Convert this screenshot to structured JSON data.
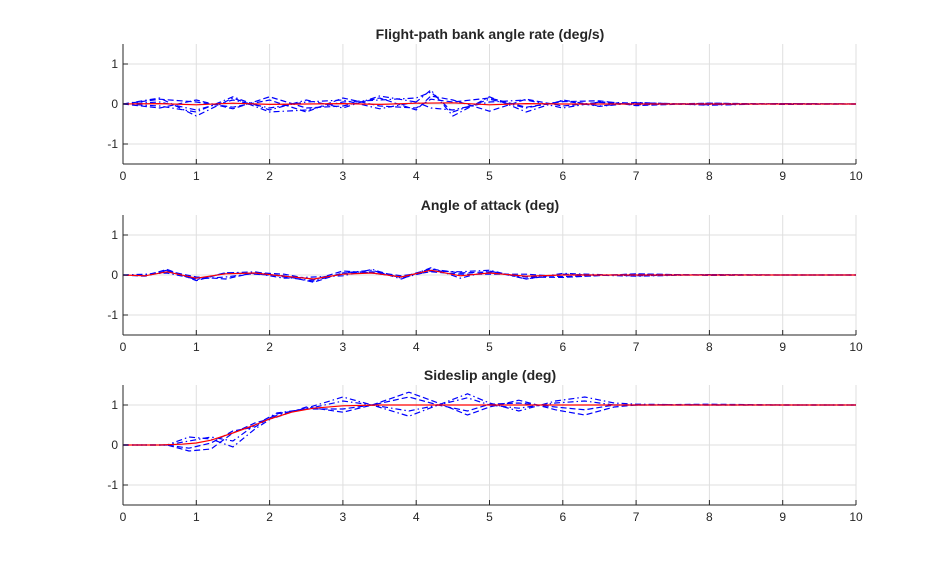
{
  "figure": {
    "background": "#ffffff",
    "reference_color": "#ff0000",
    "sample_color": "#0000ff"
  },
  "chart_data": [
    {
      "type": "line",
      "title": "Flight-path bank angle rate (deg/s)",
      "xlim": [
        0,
        10
      ],
      "ylim": [
        -1.5,
        1.5
      ],
      "xticks": [
        0,
        1,
        2,
        3,
        4,
        5,
        6,
        7,
        8,
        9,
        10
      ],
      "yticks": [
        -1,
        0,
        1
      ],
      "grid": true,
      "reference": {
        "style": "solid",
        "color": "#ff0000",
        "x": [
          0,
          0.5,
          1,
          1.5,
          2,
          2.5,
          3,
          3.5,
          4,
          4.5,
          5,
          5.5,
          6,
          6.5,
          7,
          8,
          9,
          10
        ],
        "y": [
          0,
          0.01,
          -0.02,
          0.02,
          -0.01,
          0.0,
          0.01,
          -0.01,
          0.02,
          0.03,
          -0.02,
          0.01,
          0.0,
          0.0,
          0.0,
          0.0,
          0.0,
          0.0
        ]
      },
      "series": [
        {
          "style": "dash-dot",
          "color": "#0000ff",
          "x": [
            0,
            0.5,
            1,
            1.5,
            2,
            2.5,
            3,
            3.5,
            4,
            4.2,
            4.5,
            5,
            5.5,
            6,
            6.5,
            7,
            8,
            9,
            10
          ],
          "y": [
            0,
            0.15,
            -0.3,
            0.15,
            -0.2,
            -0.15,
            0.05,
            0.1,
            0.15,
            0.3,
            -0.2,
            0.12,
            -0.1,
            0.08,
            -0.06,
            0.03,
            -0.01,
            0.01,
            0
          ]
        },
        {
          "style": "dashed",
          "color": "#0000ff",
          "x": [
            0,
            0.5,
            1,
            1.5,
            2,
            2.5,
            3,
            3.5,
            4,
            4.2,
            4.5,
            5,
            5.5,
            6,
            6.5,
            7,
            8,
            9,
            10
          ],
          "y": [
            0,
            -0.1,
            0.1,
            -0.12,
            0.18,
            -0.1,
            -0.05,
            0.15,
            -0.15,
            0.2,
            0.1,
            -0.18,
            0.12,
            -0.05,
            0.04,
            -0.02,
            0.02,
            -0.01,
            0
          ]
        },
        {
          "style": "dash-dot",
          "color": "#0000ff",
          "x": [
            0,
            0.5,
            1,
            1.5,
            2,
            2.5,
            3,
            3.5,
            4,
            4.2,
            4.5,
            5,
            5.5,
            6,
            6.5,
            7,
            8,
            9,
            10
          ],
          "y": [
            0,
            0.05,
            -0.15,
            0.1,
            -0.1,
            0.05,
            0.1,
            -0.12,
            0.05,
            0.35,
            -0.3,
            0.18,
            -0.2,
            0.1,
            -0.05,
            0.04,
            -0.03,
            0.01,
            0
          ]
        },
        {
          "style": "dashed",
          "color": "#0000ff",
          "x": [
            0,
            0.5,
            1,
            1.5,
            2,
            2.5,
            3,
            3.5,
            4,
            4.2,
            4.5,
            5,
            5.5,
            6,
            6.5,
            7,
            8,
            9,
            10
          ],
          "y": [
            0,
            0.12,
            0.05,
            -0.08,
            0.1,
            -0.2,
            0.15,
            -0.05,
            -0.1,
            0.12,
            0.05,
            0.15,
            -0.08,
            0.06,
            0.08,
            -0.04,
            0.02,
            0.0,
            0
          ]
        },
        {
          "style": "dash-dot",
          "color": "#0000ff",
          "x": [
            0,
            0.5,
            1,
            1.5,
            2,
            2.5,
            3,
            3.5,
            4,
            4.2,
            4.5,
            5,
            5.5,
            6,
            6.5,
            7,
            8,
            9,
            10
          ],
          "y": [
            0,
            -0.05,
            -0.2,
            0.18,
            -0.15,
            0.1,
            -0.1,
            0.2,
            0.05,
            -0.1,
            -0.15,
            0.05,
            0.1,
            -0.1,
            0.05,
            0.02,
            -0.02,
            0.01,
            0
          ]
        }
      ]
    },
    {
      "type": "line",
      "title": "Angle of attack (deg)",
      "xlim": [
        0,
        10
      ],
      "ylim": [
        -1.5,
        1.5
      ],
      "xticks": [
        0,
        1,
        2,
        3,
        4,
        5,
        6,
        7,
        8,
        9,
        10
      ],
      "yticks": [
        -1,
        0,
        1
      ],
      "grid": true,
      "reference": {
        "style": "solid",
        "color": "#ff0000",
        "x": [
          0,
          0.3,
          0.6,
          1,
          1.4,
          1.8,
          2.2,
          2.6,
          3,
          3.4,
          3.8,
          4.2,
          4.6,
          5,
          5.5,
          6,
          7,
          8,
          9,
          10
        ],
        "y": [
          0,
          -0.02,
          0.08,
          -0.08,
          0.03,
          0.05,
          -0.03,
          -0.1,
          0.02,
          0.05,
          -0.05,
          0.12,
          -0.02,
          0.05,
          -0.03,
          0.0,
          0.0,
          0.0,
          0.0,
          0.0
        ]
      },
      "series": [
        {
          "style": "dash-dot",
          "color": "#0000ff",
          "x": [
            0,
            0.3,
            0.6,
            1,
            1.4,
            1.8,
            2.2,
            2.6,
            3,
            3.4,
            3.8,
            4.2,
            4.6,
            5,
            5.5,
            6,
            7,
            8,
            9,
            10
          ],
          "y": [
            0,
            0.0,
            0.12,
            -0.12,
            0.05,
            0.08,
            -0.05,
            -0.15,
            0.05,
            0.12,
            -0.1,
            0.18,
            -0.08,
            0.1,
            -0.1,
            0.04,
            -0.02,
            0.01,
            0.0,
            0
          ]
        },
        {
          "style": "dashed",
          "color": "#0000ff",
          "x": [
            0,
            0.3,
            0.6,
            1,
            1.4,
            1.8,
            2.2,
            2.6,
            3,
            3.4,
            3.8,
            4.2,
            4.6,
            5,
            5.5,
            6,
            7,
            8,
            9,
            10
          ],
          "y": [
            0,
            -0.03,
            0.1,
            -0.05,
            -0.1,
            0.06,
            0.02,
            -0.12,
            0.1,
            0.05,
            -0.05,
            0.15,
            0.05,
            0.08,
            -0.05,
            -0.06,
            0.03,
            -0.01,
            0.0,
            0
          ]
        },
        {
          "style": "dash-dot",
          "color": "#0000ff",
          "x": [
            0,
            0.3,
            0.6,
            1,
            1.4,
            1.8,
            2.2,
            2.6,
            3,
            3.4,
            3.8,
            4.2,
            4.6,
            5,
            5.5,
            6,
            7,
            8,
            9,
            10
          ],
          "y": [
            0,
            0.02,
            0.05,
            -0.1,
            -0.05,
            0.04,
            -0.08,
            -0.05,
            -0.02,
            0.14,
            -0.08,
            0.1,
            0.08,
            0.12,
            -0.1,
            0.02,
            -0.03,
            0.01,
            0.0,
            0
          ]
        },
        {
          "style": "dashed",
          "color": "#0000ff",
          "x": [
            0,
            0.3,
            0.6,
            1,
            1.4,
            1.8,
            2.2,
            2.6,
            3,
            3.4,
            3.8,
            4.2,
            4.6,
            5,
            5.5,
            6,
            7,
            8,
            9,
            10
          ],
          "y": [
            0,
            -0.02,
            0.14,
            -0.14,
            0.06,
            0.02,
            -0.02,
            -0.18,
            0.05,
            0.08,
            -0.02,
            0.08,
            0.02,
            0.02,
            0.02,
            -0.04,
            0.02,
            0.0,
            0.0,
            0
          ]
        }
      ]
    },
    {
      "type": "line",
      "title": "Sideslip angle (deg)",
      "xlim": [
        0,
        10
      ],
      "ylim": [
        -1.5,
        1.5
      ],
      "xticks": [
        0,
        1,
        2,
        3,
        4,
        5,
        6,
        7,
        8,
        9,
        10
      ],
      "yticks": [
        -1,
        0,
        1
      ],
      "grid": true,
      "reference": {
        "style": "solid",
        "color": "#ff0000",
        "x": [
          0,
          0.5,
          0.8,
          1.0,
          1.2,
          1.5,
          1.8,
          2.0,
          2.3,
          2.6,
          3,
          3.5,
          4,
          5,
          6,
          7,
          8,
          9,
          10
        ],
        "y": [
          0,
          0,
          0.02,
          0.05,
          0.12,
          0.3,
          0.5,
          0.65,
          0.82,
          0.92,
          0.98,
          1.0,
          1.0,
          1.0,
          1.0,
          1.0,
          1.0,
          1.0,
          1.0
        ]
      },
      "series": [
        {
          "style": "dash-dot",
          "color": "#0000ff",
          "x": [
            0,
            0.6,
            0.9,
            1.2,
            1.5,
            1.8,
            2.1,
            2.5,
            3,
            3.4,
            3.9,
            4.3,
            4.7,
            5,
            5.4,
            5.9,
            6.3,
            6.7,
            7,
            8,
            9,
            10
          ],
          "y": [
            0,
            0,
            0.2,
            0.15,
            -0.05,
            0.4,
            0.75,
            0.92,
            1.2,
            1.0,
            0.72,
            1.0,
            1.28,
            1.05,
            0.85,
            1.1,
            1.2,
            1.05,
            1.02,
            1.0,
            1.0,
            1.0
          ]
        },
        {
          "style": "dashed",
          "color": "#0000ff",
          "x": [
            0,
            0.6,
            0.9,
            1.2,
            1.5,
            1.8,
            2.1,
            2.5,
            3,
            3.4,
            3.9,
            4.3,
            4.7,
            5,
            5.4,
            5.9,
            6.3,
            6.7,
            7,
            8,
            9,
            10
          ],
          "y": [
            0,
            0,
            -0.15,
            -0.1,
            0.3,
            0.55,
            0.7,
            0.95,
            0.82,
            1.0,
            1.32,
            1.05,
            0.75,
            0.95,
            1.12,
            0.88,
            0.75,
            0.95,
            1.0,
            1.02,
            1.0,
            1.0
          ]
        },
        {
          "style": "dash-dot",
          "color": "#0000ff",
          "x": [
            0,
            0.6,
            0.9,
            1.2,
            1.5,
            1.8,
            2.1,
            2.5,
            3,
            3.4,
            3.9,
            4.3,
            4.7,
            5,
            5.4,
            5.9,
            6.3,
            6.7,
            7,
            8,
            9,
            10
          ],
          "y": [
            0,
            0,
            0.1,
            0.2,
            0.1,
            0.5,
            0.8,
            0.9,
            1.1,
            1.0,
            0.85,
            1.0,
            1.18,
            1.0,
            0.92,
            1.05,
            1.1,
            1.0,
            1.0,
            1.0,
            1.0,
            1.0
          ]
        },
        {
          "style": "dashed",
          "color": "#0000ff",
          "x": [
            0,
            0.6,
            0.9,
            1.2,
            1.5,
            1.8,
            2.1,
            2.5,
            3,
            3.4,
            3.9,
            4.3,
            4.7,
            5,
            5.4,
            5.9,
            6.3,
            6.7,
            7,
            8,
            9,
            10
          ],
          "y": [
            0,
            0,
            -0.08,
            0.05,
            0.35,
            0.45,
            0.78,
            0.9,
            0.9,
            1.0,
            1.2,
            1.0,
            0.85,
            1.02,
            1.05,
            0.95,
            0.88,
            1.0,
            1.0,
            1.0,
            1.0,
            1.0
          ]
        }
      ]
    }
  ]
}
